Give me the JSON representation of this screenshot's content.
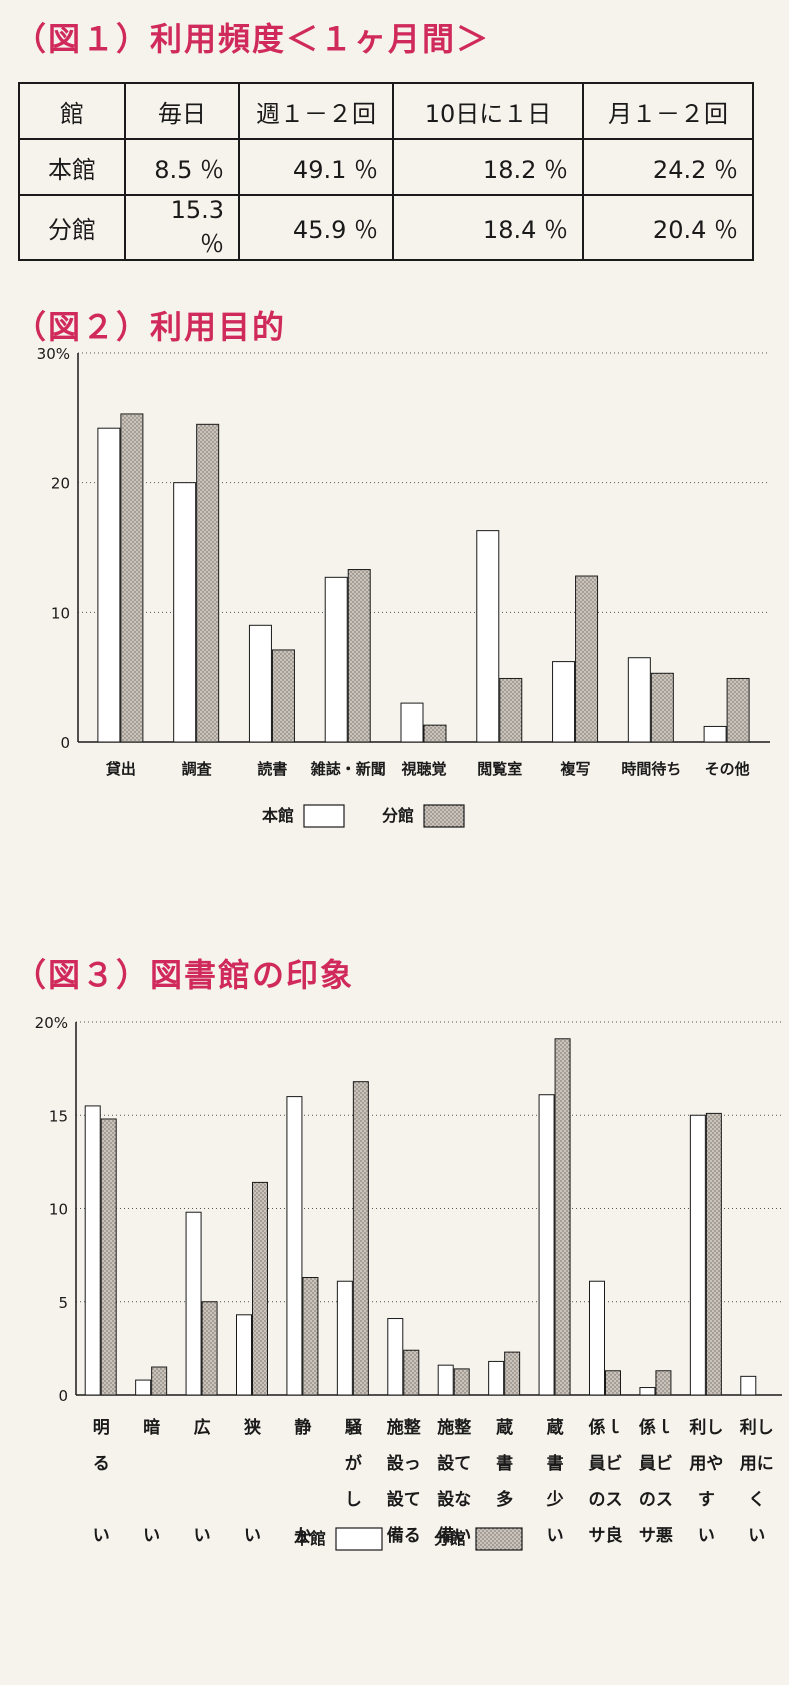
{
  "fig1": {
    "title": "（図１）利用頻度＜１ヶ月間＞",
    "headers": [
      "館",
      "毎日",
      "週１－２回",
      "10日に１日",
      "月１－２回"
    ],
    "rows": [
      {
        "label": "本館",
        "cells": [
          "8.5 ％",
          "49.1 ％",
          "18.2 ％",
          "24.2 ％"
        ]
      },
      {
        "label": "分館",
        "cells": [
          "15.3 ％",
          "45.9 ％",
          "18.4 ％",
          "20.4 ％"
        ]
      }
    ]
  },
  "fig2": {
    "title": "（図２）利用目的",
    "legend": {
      "honkan": "本館",
      "bunkan": "分館"
    }
  },
  "fig3": {
    "title": "（図３）図書館の印象",
    "legend": {
      "honkan": "本館",
      "bunkan": "分館"
    }
  },
  "colors": {
    "honkan_fill": "#ffffff",
    "bunkan_fill": "#c9c3bb",
    "axis": "#1a1a1a",
    "grid": "#555555"
  },
  "chart_data": [
    {
      "type": "bar",
      "categories": [
        "貸出",
        "調査",
        "読書",
        "雑誌・新聞",
        "視聴覚",
        "閲覧室",
        "複写",
        "時間待ち",
        "その他"
      ],
      "series": [
        {
          "name": "本館",
          "values": [
            24.2,
            20.0,
            9.0,
            12.7,
            3.0,
            16.3,
            6.2,
            6.5,
            1.2
          ]
        },
        {
          "name": "分館",
          "values": [
            25.3,
            24.5,
            7.1,
            13.3,
            1.3,
            4.9,
            12.8,
            5.3,
            4.9
          ]
        }
      ],
      "yticks": [
        "0",
        "10",
        "20",
        "30%"
      ],
      "ylim": [
        0,
        30
      ],
      "grid": true,
      "legend_position": "bottom"
    },
    {
      "type": "bar",
      "categories": [
        "明るい",
        "暗い",
        "広い",
        "狭い",
        "静か",
        "騒がしい",
        "施設整って設備",
        "施設整って設備な備い",
        "蔵書多い",
        "蔵書少い",
        "係員のサービス良",
        "係員のサービス悪",
        "利用やすい",
        "利用にくい"
      ],
      "category_lines": [
        [
          "明",
          "る",
          "",
          "い"
        ],
        [
          "暗",
          "",
          "",
          "い"
        ],
        [
          "広",
          "",
          "",
          "い"
        ],
        [
          "狭",
          "",
          "",
          "い"
        ],
        [
          "静",
          "",
          "",
          "か"
        ],
        [
          "騒",
          "が",
          "し",
          "い"
        ],
        [
          "施整",
          "設っ",
          "設て",
          "備る"
        ],
        [
          "施整",
          "設て",
          "設な",
          "備い"
        ],
        [
          "蔵",
          "書",
          "多",
          "い"
        ],
        [
          "蔵",
          "書",
          "少",
          "い"
        ],
        [
          "係ｌ",
          "員ビ",
          "のス",
          "サ良"
        ],
        [
          "係ｌ",
          "員ビ",
          "のス",
          "サ悪"
        ],
        [
          "利し",
          "用や",
          "す",
          "い"
        ],
        [
          "利し",
          "用に",
          "く",
          "い"
        ]
      ],
      "series": [
        {
          "name": "本館",
          "values": [
            15.5,
            0.8,
            9.8,
            4.3,
            16.0,
            6.1,
            4.1,
            1.6,
            1.8,
            16.1,
            6.1,
            0.4,
            15.0,
            1.0
          ]
        },
        {
          "name": "分館",
          "values": [
            14.8,
            1.5,
            5.0,
            11.4,
            6.3,
            16.8,
            2.4,
            1.4,
            2.3,
            19.1,
            1.3,
            1.3,
            15.1,
            0
          ]
        }
      ],
      "yticks": [
        "0",
        "5",
        "10",
        "15",
        "20%"
      ],
      "ylim": [
        0,
        20
      ],
      "grid": true,
      "legend_position": "bottom"
    }
  ]
}
